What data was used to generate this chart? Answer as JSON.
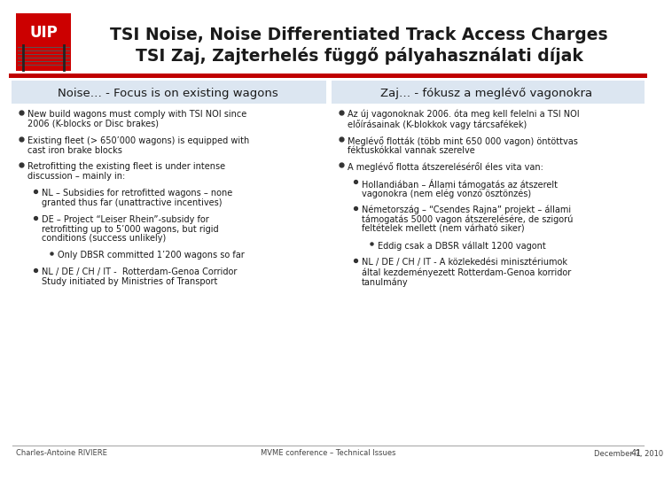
{
  "title_line1": "TSI Noise, Noise Differentiated Track Access Charges",
  "title_line2": "TSI Zaj, Zajterhelés függő pályahasználati díjak",
  "title_fontsize": 13.5,
  "bg_color": "#ffffff",
  "header_bg": "#dce6f1",
  "red_line_color": "#c00000",
  "left_header": "Noise… - Focus is on existing wagons",
  "right_header": "Zaj… - fókusz a meglévő vagonokra",
  "header_fontsize": 9.5,
  "body_fontsize": 7.0,
  "sub_fontsize": 6.5,
  "footer_left": "Charles-Antoine RIVIERE",
  "footer_center": "MVME conference – Technical Issues",
  "footer_right": "December 7, 2010",
  "footer_page": "41",
  "footer_fontsize": 6.0,
  "uip_color": "#cc0000",
  "col_divider": 0.502,
  "left_bullets": [
    {
      "level": 1,
      "text": "New build wagons must comply with TSI NOI since\n2006 (K-blocks or Disc brakes)"
    },
    {
      "level": 1,
      "text": "Existing fleet (> 650’000 wagons) is equipped with\ncast iron brake blocks"
    },
    {
      "level": 1,
      "text": "Retrofitting the existing fleet is under intense\ndiscussion – mainly in:"
    },
    {
      "level": 2,
      "text": "NL – Subsidies for retrofitted wagons – none\ngranted thus far (unattractive incentives)"
    },
    {
      "level": 2,
      "text": "DE – Project “Leiser Rhein”-subsidy for\nretrofitting up to 5’000 wagons, but rigid\nconditions (success unlikely)"
    },
    {
      "level": 3,
      "text": "Only DBSR committed 1’200 wagons so far"
    },
    {
      "level": 2,
      "text": "NL / DE / CH / IT -  Rotterdam-Genoa Corridor\nStudy initiated by Ministries of Transport"
    }
  ],
  "right_bullets": [
    {
      "level": 1,
      "text": "Az új vagonoknak 2006. óta meg kell felelni a TSI NOI\nelőírásainak (K-blokkok vagy tárcsafékek)"
    },
    {
      "level": 1,
      "text": "Meglévő flották (több mint 650 000 vagon) öntöttvas\nféktuskókkal vannak szerelve"
    },
    {
      "level": 1,
      "text": "A meglévő flotta átszereléséről éles vita van:"
    },
    {
      "level": 2,
      "text": "Hollandiában – Állami támogatás az átszerelt\nvagonokra (nem elég vonzó ösztönzés)"
    },
    {
      "level": 2,
      "text": "Németország – “Csendes Rajna” projekt – állami\ntámogatás 5000 vagon átszerelésére, de szigorú\nfeltételek mellett (nem várható siker)"
    },
    {
      "level": 3,
      "text": "Eddig csak a DBSR vállalt 1200 vagont"
    },
    {
      "level": 2,
      "text": "NL / DE / CH / IT - A közlekedési minisztériumok\náltal kezdeményezett Rotterdam-Genoa korridor\ntanulmány"
    }
  ]
}
